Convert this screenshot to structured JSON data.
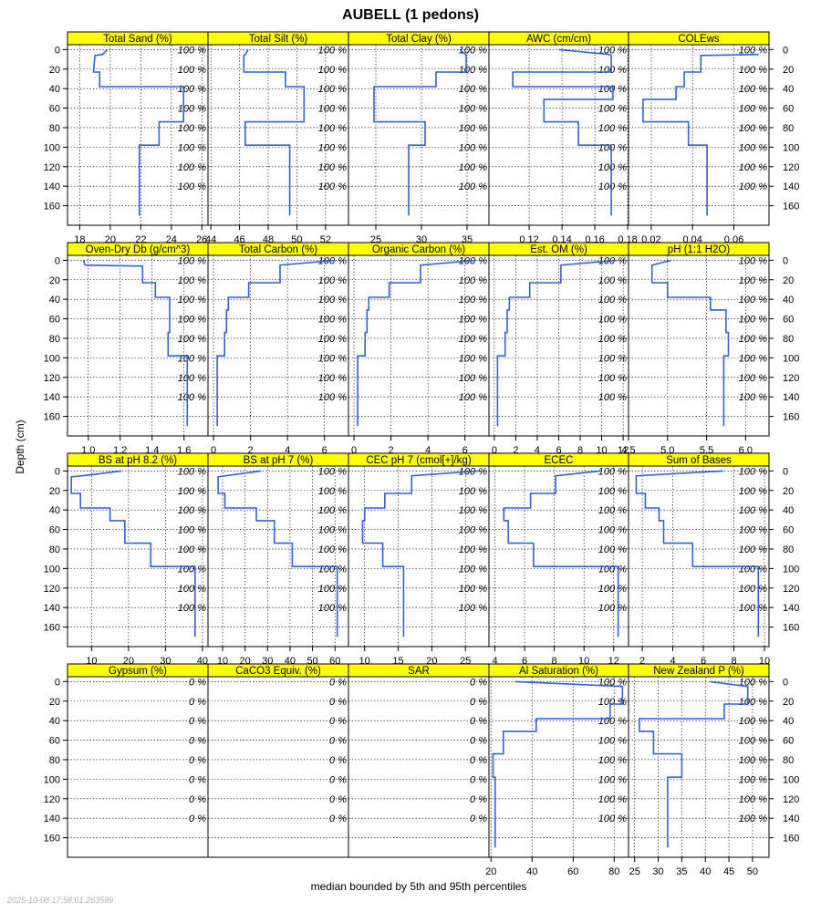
{
  "chart_data": {
    "type": "line",
    "title": "AUBELL (1 pedons)",
    "ylabel": "Depth (cm)",
    "xlabel": "median bounded by 5th and 95th percentiles",
    "timestamp": "2025-10-08 17:58:01.263599",
    "depth_ticks": [
      0,
      20,
      40,
      60,
      80,
      100,
      120,
      140,
      160
    ],
    "depth_range": [
      180,
      -5
    ],
    "grid": true,
    "line_color": "#3461d9",
    "strip_color": "#ffff00",
    "panels": [
      {
        "name": "Total Sand (%)",
        "xlim": [
          17.2,
          26.4
        ],
        "ticks": [
          18,
          20,
          22,
          24,
          26
        ],
        "tick_labels": [
          "18",
          "20",
          "22",
          "24",
          "26"
        ],
        "percent_label": "100 %",
        "profile": [
          [
            19.8,
            0
          ],
          [
            19.5,
            5
          ],
          [
            19.0,
            6
          ],
          [
            18.9,
            23
          ],
          [
            19.3,
            23
          ],
          [
            19.3,
            38
          ],
          [
            24.8,
            38
          ],
          [
            24.8,
            74
          ],
          [
            23.2,
            74
          ],
          [
            23.2,
            98
          ],
          [
            21.9,
            98
          ],
          [
            21.9,
            170
          ]
        ]
      },
      {
        "name": "Total Silt (%)",
        "xlim": [
          43.8,
          53.6
        ],
        "ticks": [
          44,
          46,
          48,
          50,
          52
        ],
        "tick_labels": [
          "44",
          "46",
          "48",
          "50",
          "52"
        ],
        "percent_label": "100 %",
        "profile": [
          [
            46.6,
            0
          ],
          [
            46.4,
            5
          ],
          [
            46.3,
            6
          ],
          [
            46.3,
            23
          ],
          [
            49.2,
            23
          ],
          [
            49.2,
            38
          ],
          [
            50.5,
            38
          ],
          [
            50.5,
            74
          ],
          [
            46.4,
            74
          ],
          [
            46.4,
            98
          ],
          [
            49.5,
            98
          ],
          [
            49.5,
            170
          ]
        ]
      },
      {
        "name": "Total Clay (%)",
        "xlim": [
          22.0,
          37.4
        ],
        "ticks": [
          25,
          30,
          35
        ],
        "tick_labels": [
          "25",
          "30",
          "35"
        ],
        "percent_label": "100 %",
        "profile": [
          [
            34.2,
            0
          ],
          [
            34.8,
            5
          ],
          [
            34.9,
            6
          ],
          [
            34.9,
            23
          ],
          [
            31.6,
            23
          ],
          [
            31.6,
            38
          ],
          [
            24.8,
            38
          ],
          [
            24.8,
            74
          ],
          [
            30.4,
            74
          ],
          [
            30.4,
            98
          ],
          [
            28.6,
            98
          ],
          [
            28.6,
            170
          ]
        ]
      },
      {
        "name": "AWC (cm/cm)",
        "xlim": [
          0.0955,
          0.1805
        ],
        "ticks": [
          0.12,
          0.14,
          0.16,
          0.18
        ],
        "tick_labels": [
          "0.12",
          "0.14",
          "0.16",
          "0.18"
        ],
        "percent_label": "100 %",
        "profile": [
          [
            0.138,
            0
          ],
          [
            0.169,
            5
          ],
          [
            0.17,
            6
          ],
          [
            0.17,
            23
          ],
          [
            0.11,
            23
          ],
          [
            0.11,
            38
          ],
          [
            0.171,
            38
          ],
          [
            0.171,
            51
          ],
          [
            0.129,
            51
          ],
          [
            0.129,
            74
          ],
          [
            0.15,
            74
          ],
          [
            0.15,
            98
          ],
          [
            0.17,
            98
          ],
          [
            0.17,
            170
          ]
        ]
      },
      {
        "name": "COLEws",
        "xlim": [
          0.009,
          0.077
        ],
        "ticks": [
          0.02,
          0.04,
          0.06
        ],
        "tick_labels": [
          "0.02",
          "0.04",
          "0.06"
        ],
        "percent_label": "100 %",
        "profile": [
          [
            0.072,
            5
          ],
          [
            0.044,
            6
          ],
          [
            0.044,
            23
          ],
          [
            0.036,
            23
          ],
          [
            0.036,
            38
          ],
          [
            0.032,
            38
          ],
          [
            0.032,
            51
          ],
          [
            0.016,
            51
          ],
          [
            0.016,
            74
          ],
          [
            0.038,
            74
          ],
          [
            0.038,
            98
          ],
          [
            0.047,
            98
          ],
          [
            0.047,
            170
          ]
        ]
      },
      {
        "name": "Oven-Dry Db (g/cm^3)",
        "xlim": [
          0.87,
          1.75
        ],
        "ticks": [
          1.0,
          1.2,
          1.4,
          1.6
        ],
        "tick_labels": [
          "1.0",
          "1.2",
          "1.4",
          "1.6"
        ],
        "percent_label": "100 %",
        "profile": [
          [
            0.97,
            0
          ],
          [
            0.98,
            5
          ],
          [
            1.34,
            6
          ],
          [
            1.34,
            23
          ],
          [
            1.42,
            23
          ],
          [
            1.42,
            38
          ],
          [
            1.51,
            38
          ],
          [
            1.51,
            74
          ],
          [
            1.5,
            74
          ],
          [
            1.5,
            98
          ],
          [
            1.62,
            98
          ],
          [
            1.62,
            170
          ]
        ]
      },
      {
        "name": "Total Carbon (%)",
        "xlim": [
          -0.3,
          7.3
        ],
        "ticks": [
          0,
          2,
          4,
          6
        ],
        "tick_labels": [
          "0",
          "2",
          "4",
          "6"
        ],
        "percent_label": "100 %",
        "profile": [
          [
            6.6,
            0
          ],
          [
            3.6,
            5
          ],
          [
            3.6,
            23
          ],
          [
            1.9,
            23
          ],
          [
            1.9,
            38
          ],
          [
            0.8,
            38
          ],
          [
            0.8,
            51
          ],
          [
            0.7,
            51
          ],
          [
            0.7,
            74
          ],
          [
            0.6,
            74
          ],
          [
            0.6,
            98
          ],
          [
            0.2,
            98
          ],
          [
            0.2,
            170
          ]
        ]
      },
      {
        "name": "Organic Carbon (%)",
        "xlim": [
          -0.3,
          7.3
        ],
        "ticks": [
          0,
          2,
          4,
          6
        ],
        "tick_labels": [
          "0",
          "2",
          "4",
          "6"
        ],
        "percent_label": "100 %",
        "profile": [
          [
            6.6,
            0
          ],
          [
            3.6,
            5
          ],
          [
            3.6,
            23
          ],
          [
            1.9,
            23
          ],
          [
            1.9,
            38
          ],
          [
            0.8,
            38
          ],
          [
            0.8,
            51
          ],
          [
            0.7,
            51
          ],
          [
            0.7,
            74
          ],
          [
            0.6,
            74
          ],
          [
            0.6,
            98
          ],
          [
            0.2,
            98
          ],
          [
            0.2,
            170
          ]
        ]
      },
      {
        "name": "Est. OM (%)",
        "xlim": [
          -0.5,
          12.5
        ],
        "ticks": [
          0,
          2,
          4,
          6,
          8,
          10,
          12
        ],
        "tick_labels": [
          "0",
          "2",
          "4",
          "6",
          "8",
          "10",
          "12"
        ],
        "percent_label": "100 %",
        "profile": [
          [
            11.4,
            0
          ],
          [
            6.2,
            5
          ],
          [
            6.2,
            23
          ],
          [
            3.3,
            23
          ],
          [
            3.3,
            38
          ],
          [
            1.4,
            38
          ],
          [
            1.4,
            51
          ],
          [
            1.2,
            51
          ],
          [
            1.2,
            74
          ],
          [
            1.0,
            74
          ],
          [
            1.0,
            98
          ],
          [
            0.3,
            98
          ],
          [
            0.3,
            170
          ]
        ]
      },
      {
        "name": "pH (1:1 H2O)",
        "xlim": [
          4.5,
          6.3
        ],
        "ticks": [
          4.5,
          5.0,
          5.5,
          6.0
        ],
        "tick_labels": [
          "4.5",
          "5.0",
          "5.5",
          "6.0"
        ],
        "percent_label": "100 %",
        "profile": [
          [
            5.05,
            0
          ],
          [
            4.8,
            5
          ],
          [
            4.8,
            23
          ],
          [
            5.0,
            23
          ],
          [
            5.0,
            38
          ],
          [
            5.55,
            38
          ],
          [
            5.55,
            51
          ],
          [
            5.75,
            51
          ],
          [
            5.75,
            74
          ],
          [
            5.78,
            74
          ],
          [
            5.78,
            98
          ],
          [
            5.72,
            98
          ],
          [
            5.72,
            170
          ]
        ]
      },
      {
        "name": "BS at pH 8.2 (%)",
        "xlim": [
          3.5,
          41.5
        ],
        "ticks": [
          10,
          20,
          30,
          40
        ],
        "tick_labels": [
          "10",
          "20",
          "30",
          "40"
        ],
        "percent_label": "100 %",
        "profile": [
          [
            18,
            0
          ],
          [
            10,
            4
          ],
          [
            4.5,
            6
          ],
          [
            4.5,
            23
          ],
          [
            7,
            23
          ],
          [
            7,
            38
          ],
          [
            15,
            38
          ],
          [
            15,
            51
          ],
          [
            19,
            51
          ],
          [
            19,
            74
          ],
          [
            26,
            74
          ],
          [
            26,
            98
          ],
          [
            38,
            98
          ],
          [
            38,
            170
          ]
        ]
      },
      {
        "name": "BS at pH 7 (%)",
        "xlim": [
          3.5,
          66
        ],
        "ticks": [
          10,
          20,
          30,
          40,
          50,
          60
        ],
        "tick_labels": [
          "10",
          "20",
          "30",
          "40",
          "50",
          "60"
        ],
        "percent_label": "100 %",
        "profile": [
          [
            27,
            0
          ],
          [
            8,
            6
          ],
          [
            8,
            23
          ],
          [
            11,
            23
          ],
          [
            11,
            38
          ],
          [
            25,
            38
          ],
          [
            25,
            51
          ],
          [
            33,
            51
          ],
          [
            33,
            74
          ],
          [
            41,
            74
          ],
          [
            41,
            98
          ],
          [
            61,
            98
          ],
          [
            61,
            170
          ]
        ]
      },
      {
        "name": "CEC pH 7 (cmol[+]/kg)",
        "xlim": [
          7.6,
          28.5
        ],
        "ticks": [
          10,
          15,
          20,
          25
        ],
        "tick_labels": [
          "10",
          "15",
          "20",
          "25"
        ],
        "percent_label": "100 %",
        "profile": [
          [
            27,
            0
          ],
          [
            17,
            5
          ],
          [
            17,
            23
          ],
          [
            13,
            23
          ],
          [
            13,
            38
          ],
          [
            10,
            38
          ],
          [
            10,
            51
          ],
          [
            9.7,
            51
          ],
          [
            9.7,
            74
          ],
          [
            12.7,
            74
          ],
          [
            12.7,
            98
          ],
          [
            15.8,
            98
          ],
          [
            15.8,
            170
          ]
        ]
      },
      {
        "name": "ECEC",
        "xlim": [
          3.6,
          13.0
        ],
        "ticks": [
          4,
          6,
          8,
          10,
          12
        ],
        "tick_labels": [
          "4",
          "6",
          "8",
          "10",
          "12"
        ],
        "percent_label": "100 %",
        "profile": [
          [
            11.1,
            0
          ],
          [
            8.1,
            5
          ],
          [
            8.1,
            23
          ],
          [
            6.4,
            23
          ],
          [
            6.4,
            38
          ],
          [
            4.6,
            38
          ],
          [
            4.6,
            51
          ],
          [
            4.9,
            51
          ],
          [
            4.9,
            74
          ],
          [
            6.6,
            74
          ],
          [
            6.6,
            98
          ],
          [
            12.3,
            98
          ],
          [
            12.3,
            170
          ]
        ]
      },
      {
        "name": "Sum of Bases",
        "xlim": [
          1.1,
          10.3
        ],
        "ticks": [
          2,
          4,
          6,
          8,
          10
        ],
        "tick_labels": [
          "2",
          "4",
          "6",
          "8",
          "10"
        ],
        "percent_label": "100 %",
        "profile": [
          [
            7.3,
            0
          ],
          [
            1.6,
            5
          ],
          [
            1.6,
            23
          ],
          [
            2.2,
            23
          ],
          [
            2.2,
            38
          ],
          [
            3.1,
            38
          ],
          [
            3.1,
            51
          ],
          [
            3.4,
            51
          ],
          [
            3.4,
            74
          ],
          [
            5.3,
            74
          ],
          [
            5.3,
            98
          ],
          [
            9.6,
            98
          ],
          [
            9.6,
            170
          ]
        ]
      },
      {
        "name": "Gypsum (%)",
        "xlim": [
          0,
          1
        ],
        "ticks": [],
        "tick_labels": [],
        "percent_label": "0 %",
        "profile": []
      },
      {
        "name": "CaCO3 Equiv. (%)",
        "xlim": [
          0,
          1
        ],
        "ticks": [],
        "tick_labels": [],
        "percent_label": "0 %",
        "profile": []
      },
      {
        "name": "SAR",
        "xlim": [
          0,
          1
        ],
        "ticks": [],
        "tick_labels": [],
        "percent_label": "0 %",
        "profile": []
      },
      {
        "name": "Al Saturation (%)",
        "xlim": [
          19,
          87
        ],
        "ticks": [
          20,
          40,
          60,
          80
        ],
        "tick_labels": [
          "20",
          "40",
          "60",
          "80"
        ],
        "percent_label": "100 %",
        "profile": [
          [
            32,
            0
          ],
          [
            84,
            5
          ],
          [
            84,
            23
          ],
          [
            78,
            23
          ],
          [
            78,
            38
          ],
          [
            42,
            38
          ],
          [
            42,
            51
          ],
          [
            26,
            51
          ],
          [
            26,
            74
          ],
          [
            21,
            74
          ],
          [
            21,
            98
          ],
          [
            22,
            98
          ],
          [
            22,
            170
          ]
        ]
      },
      {
        "name": "New Zealand P (%)",
        "xlim": [
          23.7,
          53.5
        ],
        "ticks": [
          25,
          30,
          35,
          40,
          45,
          50
        ],
        "tick_labels": [
          "25",
          "30",
          "35",
          "40",
          "45",
          "50"
        ],
        "percent_label": "100 %",
        "profile": [
          [
            41,
            0
          ],
          [
            49,
            5
          ],
          [
            49,
            23
          ],
          [
            44,
            23
          ],
          [
            44,
            38
          ],
          [
            26,
            38
          ],
          [
            26,
            51
          ],
          [
            29,
            51
          ],
          [
            29,
            74
          ],
          [
            35,
            74
          ],
          [
            35,
            98
          ],
          [
            32,
            98
          ],
          [
            32,
            170
          ]
        ]
      }
    ]
  }
}
